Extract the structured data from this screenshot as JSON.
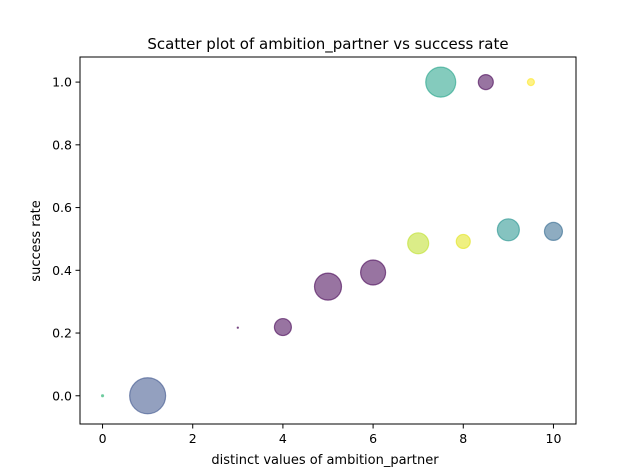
{
  "chart_data": {
    "type": "scatter",
    "title": "Scatter plot of ambition_partner vs success rate",
    "xlabel": "distinct values of ambition_partner",
    "ylabel": "success rate",
    "xlim": [
      -0.5,
      10.5
    ],
    "ylim": [
      -0.09,
      1.08
    ],
    "xticks": [
      0,
      2,
      4,
      6,
      8,
      10
    ],
    "yticks": [
      0.0,
      0.2,
      0.4,
      0.6,
      0.8,
      1.0
    ],
    "xtick_labels": [
      "0",
      "2",
      "4",
      "6",
      "8",
      "10"
    ],
    "ytick_labels": [
      "0.0",
      "0.2",
      "0.4",
      "0.6",
      "0.8",
      "1.0"
    ],
    "grid": false,
    "points": [
      {
        "x": 0,
        "y": 0.0,
        "size": 2,
        "color": "#35b779"
      },
      {
        "x": 1,
        "y": 0.0,
        "size": 36,
        "color": "#3b528b"
      },
      {
        "x": 3,
        "y": 0.217,
        "size": 1,
        "color": "#440154"
      },
      {
        "x": 4,
        "y": 0.219,
        "size": 17,
        "color": "#440154"
      },
      {
        "x": 5,
        "y": 0.348,
        "size": 27,
        "color": "#440154"
      },
      {
        "x": 6,
        "y": 0.393,
        "size": 25,
        "color": "#440154"
      },
      {
        "x": 7,
        "y": 0.486,
        "size": 21,
        "color": "#bddf26"
      },
      {
        "x": 8,
        "y": 0.492,
        "size": 14,
        "color": "#e1e319"
      },
      {
        "x": 9,
        "y": 0.529,
        "size": 22,
        "color": "#21918c"
      },
      {
        "x": 10,
        "y": 0.524,
        "size": 18,
        "color": "#31688e"
      },
      {
        "x": 7.5,
        "y": 1.0,
        "size": 30,
        "color": "#1fa187"
      },
      {
        "x": 8.5,
        "y": 1.0,
        "size": 15,
        "color": "#440154"
      },
      {
        "x": 9.5,
        "y": 1.0,
        "size": 7,
        "color": "#fde725"
      }
    ]
  }
}
